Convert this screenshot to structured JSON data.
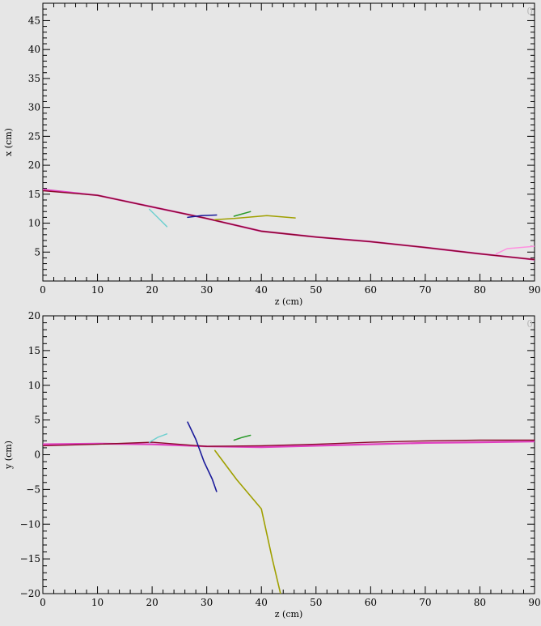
{
  "chart_data": [
    {
      "type": "line",
      "title": "",
      "xlabel": "z (cm)",
      "ylabel": "x (cm)",
      "xlim": [
        0,
        90
      ],
      "ylim": [
        0,
        48
      ],
      "x_ticks": [
        0,
        10,
        20,
        30,
        40,
        50,
        60,
        70,
        80,
        90
      ],
      "y_ticks": [
        5,
        10,
        15,
        20,
        25,
        30,
        35,
        40,
        45
      ],
      "corner_label": "0",
      "grid": false,
      "series": [
        {
          "color": "#e040c0",
          "width": 2.2,
          "points": [
            [
              0,
              15.8
            ],
            [
              10,
              14.8
            ],
            [
              20,
              12.8
            ],
            [
              30,
              10.8
            ],
            [
              40,
              8.6
            ],
            [
              50,
              7.6
            ],
            [
              60,
              6.8
            ],
            [
              70,
              5.8
            ],
            [
              80,
              4.7
            ],
            [
              90,
              3.7
            ]
          ]
        },
        {
          "color": "#8b0a2a",
          "width": 1.4,
          "points": [
            [
              0,
              15.6
            ],
            [
              10,
              14.8
            ],
            [
              20,
              12.8
            ],
            [
              30,
              10.8
            ],
            [
              40,
              8.6
            ],
            [
              50,
              7.6
            ],
            [
              60,
              6.8
            ],
            [
              70,
              5.8
            ],
            [
              80,
              4.7
            ],
            [
              90,
              3.7
            ]
          ]
        },
        {
          "color": "#70d0d0",
          "width": 1.5,
          "points": [
            [
              19.5,
              12.4
            ],
            [
              21,
              11
            ],
            [
              22.7,
              9.4
            ]
          ]
        },
        {
          "color": "#1a1a9a",
          "width": 1.5,
          "points": [
            [
              26.5,
              11
            ],
            [
              29,
              11.3
            ],
            [
              31.8,
              11.4
            ]
          ]
        },
        {
          "color": "#2a9a2a",
          "width": 1.5,
          "points": [
            [
              35,
              11.2
            ],
            [
              36.5,
              11.6
            ],
            [
              38,
              12
            ]
          ]
        },
        {
          "color": "#a0a000",
          "width": 1.5,
          "points": [
            [
              31.5,
              10.6
            ],
            [
              35,
              10.8
            ],
            [
              41,
              11.3
            ],
            [
              46.2,
              10.9
            ]
          ]
        },
        {
          "color": "#ff90e0",
          "width": 1.5,
          "points": [
            [
              83,
              4.7
            ],
            [
              85,
              5.6
            ],
            [
              90,
              6
            ]
          ]
        }
      ]
    },
    {
      "type": "line",
      "title": "",
      "xlabel": "z (cm)",
      "ylabel": "y (cm)",
      "xlim": [
        0,
        90
      ],
      "ylim": [
        -20,
        20
      ],
      "x_ticks": [
        0,
        10,
        20,
        30,
        40,
        50,
        60,
        70,
        80,
        90
      ],
      "y_ticks": [
        20,
        15,
        10,
        5,
        0,
        -5,
        -10,
        -15,
        -20
      ],
      "corner_label": "0",
      "grid": false,
      "series": [
        {
          "color": "#e040c0",
          "width": 2.2,
          "points": [
            [
              0,
              1.5
            ],
            [
              10,
              1.6
            ],
            [
              20,
              1.5
            ],
            [
              30,
              1.2
            ],
            [
              40,
              1.1
            ],
            [
              50,
              1.3
            ],
            [
              60,
              1.5
            ],
            [
              70,
              1.7
            ],
            [
              80,
              1.8
            ],
            [
              90,
              1.9
            ]
          ]
        },
        {
          "color": "#8b0a2a",
          "width": 1.4,
          "points": [
            [
              0,
              1.3
            ],
            [
              10,
              1.5
            ],
            [
              20,
              1.8
            ],
            [
              30,
              1.2
            ],
            [
              40,
              1.3
            ],
            [
              50,
              1.5
            ],
            [
              60,
              1.8
            ],
            [
              70,
              2.0
            ],
            [
              80,
              2.1
            ],
            [
              90,
              2.1
            ]
          ]
        },
        {
          "color": "#70d0d0",
          "width": 1.5,
          "points": [
            [
              19.5,
              1.8
            ],
            [
              21,
              2.5
            ],
            [
              22.7,
              3.0
            ]
          ]
        },
        {
          "color": "#1a1a9a",
          "width": 1.6,
          "points": [
            [
              26.5,
              4.7
            ],
            [
              28,
              2.2
            ],
            [
              29.5,
              -1.0
            ],
            [
              31,
              -3.5
            ],
            [
              31.8,
              -5.3
            ]
          ]
        },
        {
          "color": "#2a9a2a",
          "width": 1.5,
          "points": [
            [
              35,
              2.1
            ],
            [
              36.5,
              2.5
            ],
            [
              38,
              2.8
            ]
          ]
        },
        {
          "color": "#a0a000",
          "width": 1.6,
          "points": [
            [
              31.5,
              0.6
            ],
            [
              35.5,
              -3.6
            ],
            [
              40,
              -7.8
            ],
            [
              42,
              -15
            ],
            [
              43.5,
              -20
            ]
          ]
        }
      ]
    }
  ]
}
